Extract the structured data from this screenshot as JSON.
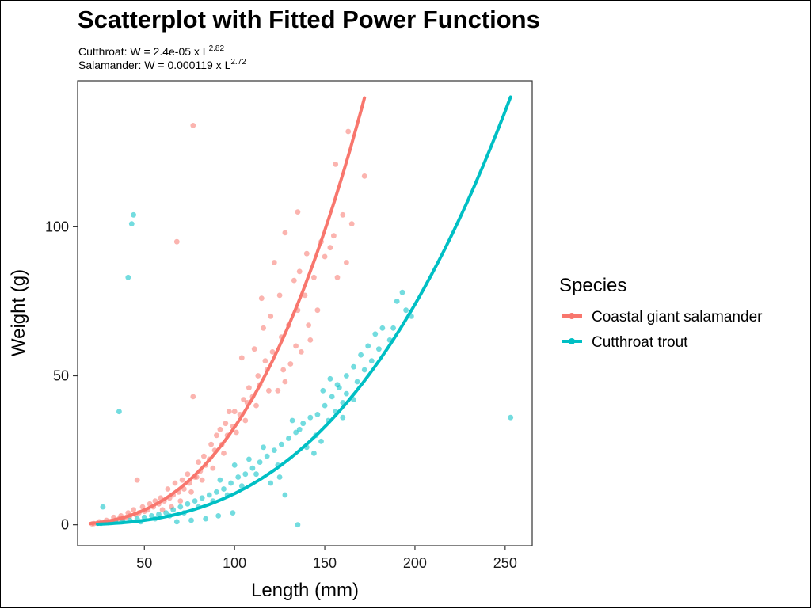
{
  "chart_data": {
    "type": "scatter",
    "title": "Scatterplot with Fitted Power Functions",
    "subtitle_lines": [
      {
        "base": "Cutthroat: W = 2.4e-05 x L",
        "exp": "2.82"
      },
      {
        "base": "Salamander: W = 0.000119 x L",
        "exp": "2.72"
      }
    ],
    "xlabel": "Length (mm)",
    "ylabel": "Weight (g)",
    "xlim": [
      13,
      265
    ],
    "ylim": [
      -7,
      149
    ],
    "x_ticks": [
      50,
      100,
      150,
      200,
      250
    ],
    "y_ticks": [
      0,
      50,
      100
    ],
    "grid": false,
    "legend": {
      "title": "Species",
      "position": "right"
    },
    "series": [
      {
        "name": "Coastal giant salamander",
        "color": "#F8766D",
        "fit": {
          "a": 0.000119,
          "b": 2.72,
          "x_range": [
            20,
            172
          ]
        },
        "points": [
          [
            77,
            134
          ],
          [
            163,
            132
          ],
          [
            156,
            121
          ],
          [
            172,
            117
          ],
          [
            68,
            95
          ],
          [
            77,
            43
          ],
          [
            46,
            15
          ],
          [
            160,
            104
          ],
          [
            165,
            101
          ],
          [
            155,
            97
          ],
          [
            148,
            95
          ],
          [
            140,
            91
          ],
          [
            136,
            85
          ],
          [
            133,
            82
          ],
          [
            125,
            77
          ],
          [
            120,
            70
          ],
          [
            116,
            66
          ],
          [
            111,
            59
          ],
          [
            104,
            56
          ],
          [
            97,
            38
          ],
          [
            90,
            30
          ],
          [
            79,
            16
          ],
          [
            142,
            62
          ],
          [
            137,
            58
          ],
          [
            131,
            54
          ],
          [
            128,
            48
          ],
          [
            124,
            45
          ],
          [
            118,
            52
          ],
          [
            114,
            47
          ],
          [
            110,
            43
          ],
          [
            107,
            41
          ],
          [
            103,
            37
          ],
          [
            99,
            33
          ],
          [
            96,
            30
          ],
          [
            93,
            27
          ],
          [
            89,
            25
          ],
          [
            86,
            22
          ],
          [
            84,
            20
          ],
          [
            81,
            18
          ],
          [
            78,
            16
          ],
          [
            75,
            14
          ],
          [
            72,
            12
          ],
          [
            69,
            11
          ],
          [
            66,
            10
          ],
          [
            64,
            9
          ],
          [
            61,
            8
          ],
          [
            58,
            7
          ],
          [
            55,
            6
          ],
          [
            52,
            5
          ],
          [
            50,
            4.5
          ],
          [
            47,
            4
          ],
          [
            45,
            3.5
          ],
          [
            42,
            3
          ],
          [
            40,
            2.5
          ],
          [
            38,
            2
          ],
          [
            36,
            2
          ],
          [
            34,
            1.5
          ],
          [
            32,
            1.2
          ],
          [
            30,
            1
          ],
          [
            28,
            0.8
          ],
          [
            26,
            0.6
          ],
          [
            24,
            0.5
          ],
          [
            22,
            0.4
          ],
          [
            21,
            0.3
          ],
          [
            63,
            12
          ],
          [
            67,
            14
          ],
          [
            71,
            15
          ],
          [
            74,
            17
          ],
          [
            80,
            21
          ],
          [
            83,
            23
          ],
          [
            87,
            27
          ],
          [
            92,
            32
          ],
          [
            95,
            34
          ],
          [
            100,
            38
          ],
          [
            105,
            42
          ],
          [
            108,
            46
          ],
          [
            113,
            50
          ],
          [
            117,
            55
          ],
          [
            121,
            58
          ],
          [
            126,
            63
          ],
          [
            130,
            67
          ],
          [
            135,
            72
          ],
          [
            139,
            77
          ],
          [
            144,
            83
          ],
          [
            150,
            90
          ],
          [
            153,
            93
          ],
          [
            59,
            9
          ],
          [
            56,
            8
          ],
          [
            53,
            7
          ],
          [
            49,
            6
          ],
          [
            44,
            5
          ],
          [
            41,
            4
          ],
          [
            37,
            3
          ],
          [
            33,
            2.5
          ],
          [
            29,
            1.5
          ],
          [
            25,
            1
          ],
          [
            60,
            5
          ],
          [
            65,
            6
          ],
          [
            70,
            8
          ],
          [
            76,
            11
          ],
          [
            82,
            15
          ],
          [
            88,
            19
          ],
          [
            94,
            24
          ],
          [
            101,
            31
          ],
          [
            106,
            35
          ],
          [
            112,
            40
          ],
          [
            119,
            45
          ],
          [
            127,
            52
          ],
          [
            134,
            60
          ],
          [
            141,
            67
          ],
          [
            146,
            72
          ],
          [
            157,
            83
          ],
          [
            162,
            88
          ],
          [
            135,
            105
          ],
          [
            128,
            98
          ],
          [
            122,
            88
          ],
          [
            115,
            76
          ]
        ]
      },
      {
        "name": "Cutthroat trout",
        "color": "#00BFC4",
        "fit": {
          "a": 2.4e-05,
          "b": 2.82,
          "x_range": [
            24,
            253
          ]
        },
        "points": [
          [
            44,
            104
          ],
          [
            43,
            101
          ],
          [
            41,
            83
          ],
          [
            36,
            38
          ],
          [
            253,
            36
          ],
          [
            135,
            0
          ],
          [
            27,
            6
          ],
          [
            193,
            78
          ],
          [
            190,
            75
          ],
          [
            195,
            72
          ],
          [
            182,
            66
          ],
          [
            178,
            64
          ],
          [
            186,
            62
          ],
          [
            174,
            60
          ],
          [
            170,
            57
          ],
          [
            176,
            55
          ],
          [
            166,
            53
          ],
          [
            162,
            50
          ],
          [
            168,
            48
          ],
          [
            158,
            46
          ],
          [
            154,
            43
          ],
          [
            160,
            41
          ],
          [
            150,
            40
          ],
          [
            146,
            37
          ],
          [
            142,
            36
          ],
          [
            138,
            34
          ],
          [
            134,
            31
          ],
          [
            130,
            29
          ],
          [
            126,
            27
          ],
          [
            122,
            25
          ],
          [
            118,
            23
          ],
          [
            114,
            21
          ],
          [
            110,
            19
          ],
          [
            106,
            17
          ],
          [
            102,
            16
          ],
          [
            98,
            14
          ],
          [
            94,
            12
          ],
          [
            90,
            11
          ],
          [
            86,
            10
          ],
          [
            82,
            9
          ],
          [
            78,
            8
          ],
          [
            74,
            7
          ],
          [
            70,
            6
          ],
          [
            66,
            5
          ],
          [
            62,
            4
          ],
          [
            58,
            3.5
          ],
          [
            54,
            3
          ],
          [
            50,
            2.5
          ],
          [
            46,
            2
          ],
          [
            42,
            1.5
          ],
          [
            38,
            1.2
          ],
          [
            34,
            1
          ],
          [
            30,
            0.7
          ],
          [
            26,
            0.5
          ],
          [
            128,
            10
          ],
          [
            125,
            16
          ],
          [
            140,
            26
          ],
          [
            145,
            30
          ],
          [
            152,
            35
          ],
          [
            156,
            38
          ],
          [
            162,
            44
          ],
          [
            172,
            52
          ],
          [
            180,
            59
          ],
          [
            188,
            66
          ],
          [
            198,
            70
          ],
          [
            120,
            14
          ],
          [
            112,
            17
          ],
          [
            104,
            13
          ],
          [
            96,
            10
          ],
          [
            88,
            8
          ],
          [
            80,
            6
          ],
          [
            72,
            4
          ],
          [
            64,
            3
          ],
          [
            56,
            2
          ],
          [
            48,
            1
          ],
          [
            99,
            4
          ],
          [
            91,
            3
          ],
          [
            84,
            2
          ],
          [
            76,
            1.5
          ],
          [
            68,
            1
          ],
          [
            136,
            32
          ],
          [
            132,
            35
          ],
          [
            148,
            28
          ],
          [
            144,
            24
          ],
          [
            116,
            26
          ],
          [
            108,
            22
          ],
          [
            100,
            20
          ],
          [
            92,
            15
          ],
          [
            124,
            20
          ],
          [
            160,
            36
          ],
          [
            166,
            42
          ],
          [
            157,
            47
          ],
          [
            153,
            49
          ],
          [
            149,
            45
          ]
        ]
      }
    ]
  }
}
